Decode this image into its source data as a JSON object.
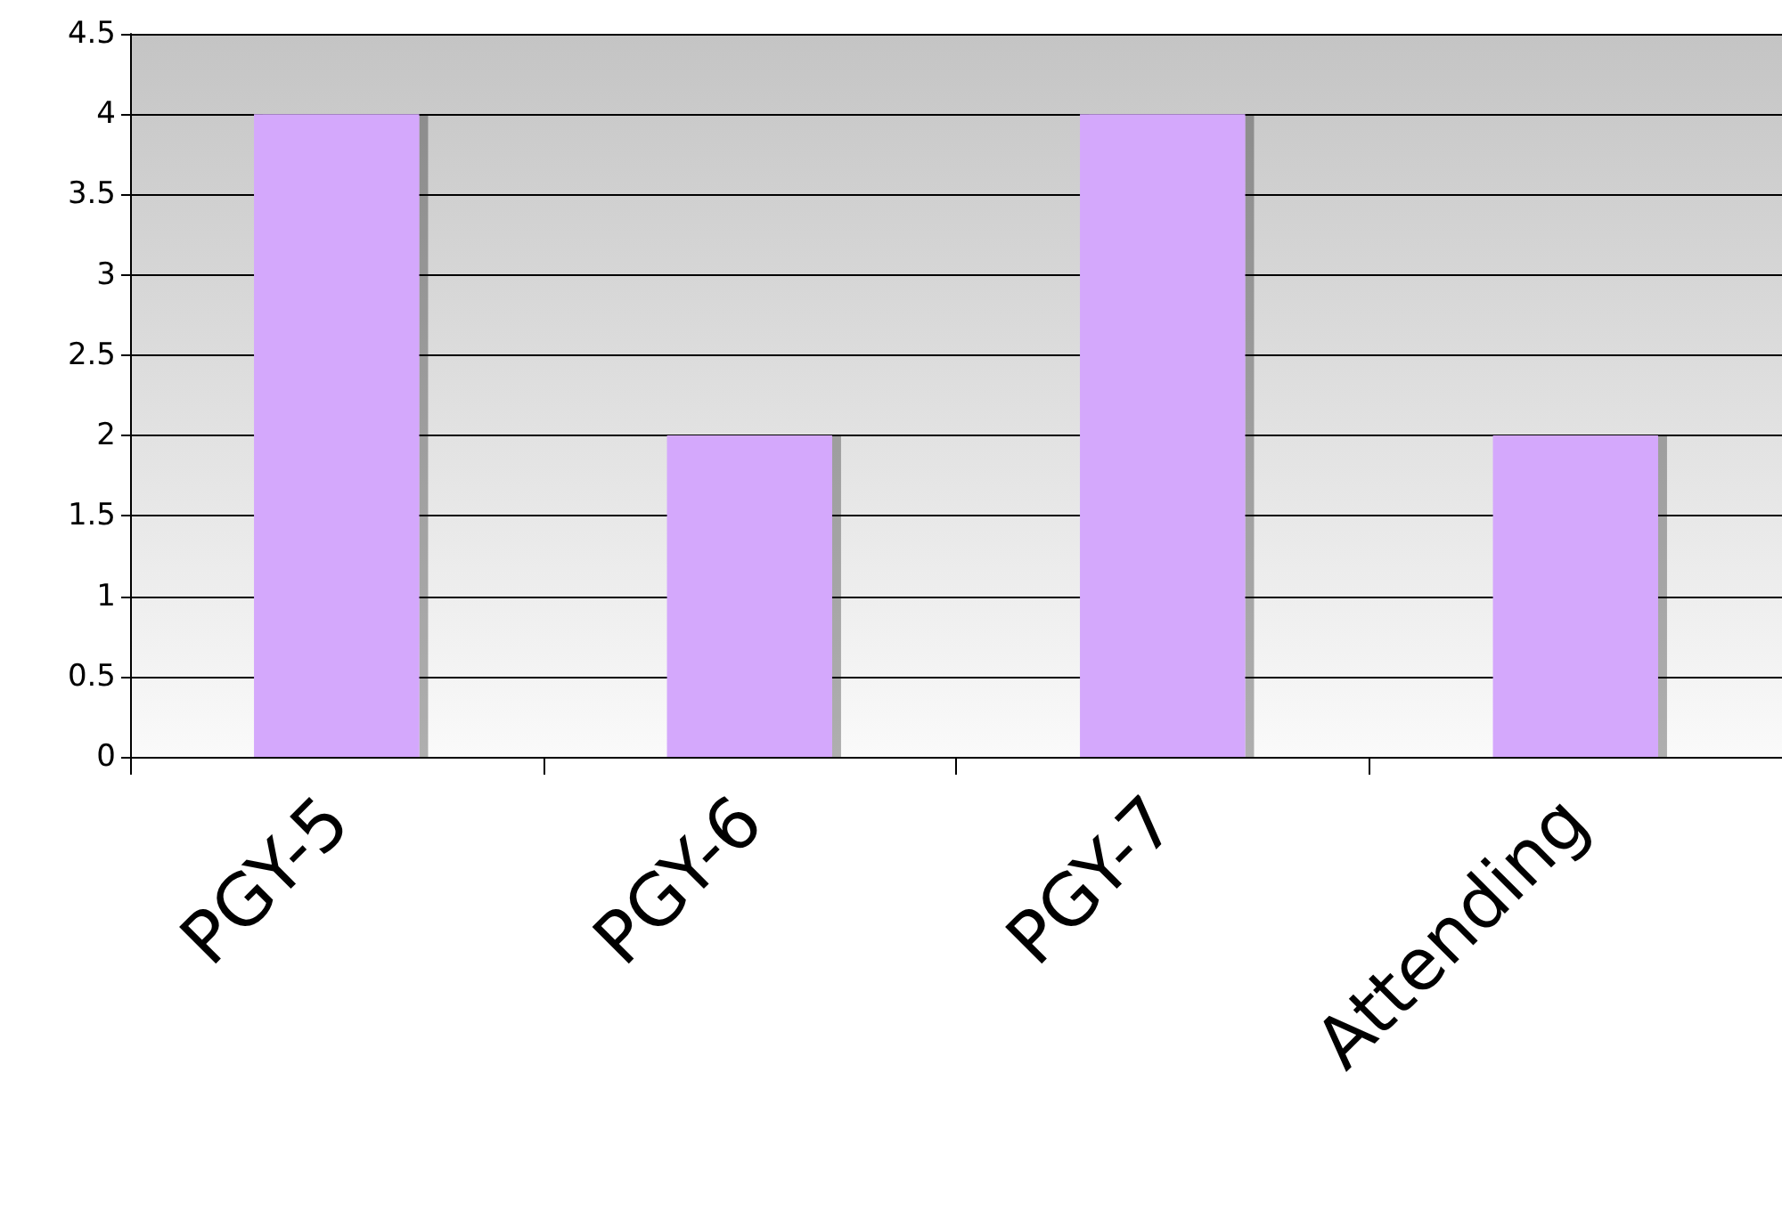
{
  "chart_data": {
    "type": "bar",
    "categories": [
      "PGY-5",
      "PGY-6",
      "PGY-7",
      "Attending"
    ],
    "values": [
      4,
      2,
      4,
      2
    ],
    "color": "#d4a8fc",
    "ylim": [
      0,
      4.5
    ],
    "yticks": [
      0,
      0.5,
      1,
      1.5,
      2,
      2.5,
      3,
      3.5,
      4,
      4.5
    ],
    "grid": "y"
  }
}
